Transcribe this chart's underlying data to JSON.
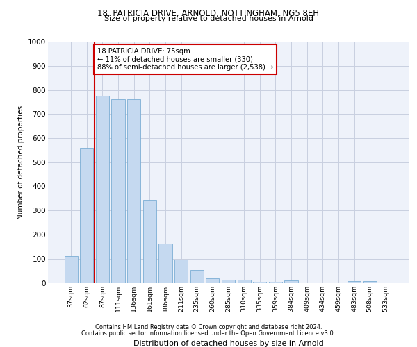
{
  "title1": "18, PATRICIA DRIVE, ARNOLD, NOTTINGHAM, NG5 8EH",
  "title2": "Size of property relative to detached houses in Arnold",
  "xlabel": "Distribution of detached houses by size in Arnold",
  "ylabel": "Number of detached properties",
  "categories": [
    "37sqm",
    "62sqm",
    "87sqm",
    "111sqm",
    "136sqm",
    "161sqm",
    "186sqm",
    "211sqm",
    "235sqm",
    "260sqm",
    "285sqm",
    "310sqm",
    "335sqm",
    "359sqm",
    "384sqm",
    "409sqm",
    "434sqm",
    "459sqm",
    "483sqm",
    "508sqm",
    "533sqm"
  ],
  "values": [
    110,
    560,
    775,
    760,
    760,
    345,
    162,
    95,
    52,
    18,
    14,
    14,
    5,
    5,
    10,
    0,
    0,
    0,
    8,
    8,
    0
  ],
  "bar_color": "#c5d9f0",
  "bar_edge_color": "#7badd4",
  "vline_color": "#cc0000",
  "vline_pos": 1.5,
  "annotation_text": "18 PATRICIA DRIVE: 75sqm\n← 11% of detached houses are smaller (330)\n88% of semi-detached houses are larger (2,538) →",
  "annotation_box_color": "white",
  "annotation_box_edge": "#cc0000",
  "footer1": "Contains HM Land Registry data © Crown copyright and database right 2024.",
  "footer2": "Contains public sector information licensed under the Open Government Licence v3.0.",
  "ylim": [
    0,
    1000
  ],
  "yticks": [
    0,
    100,
    200,
    300,
    400,
    500,
    600,
    700,
    800,
    900,
    1000
  ],
  "bg_color": "#eef2fa",
  "grid_color": "#c8cfe0"
}
